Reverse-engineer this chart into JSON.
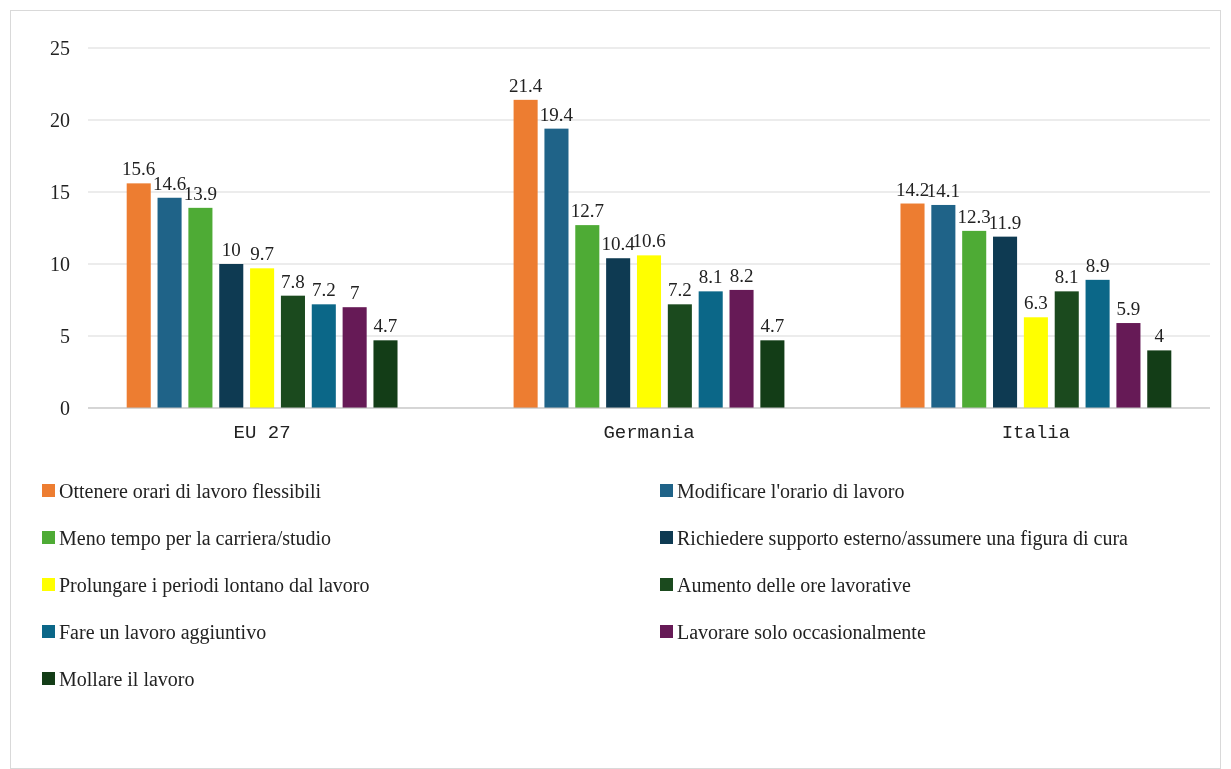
{
  "chart_data": {
    "type": "bar",
    "categories": [
      "EU 27",
      "Germania",
      "Italia"
    ],
    "series": [
      {
        "name": "Ottenere orari di lavoro flessibili",
        "color": "#ed7d31",
        "values": [
          15.6,
          21.4,
          14.2
        ]
      },
      {
        "name": "Modificare l'orario di lavoro",
        "color": "#1f6388",
        "values": [
          14.6,
          19.4,
          14.1
        ]
      },
      {
        "name": "Meno tempo per la carriera/studio",
        "color": "#4eab35",
        "values": [
          13.9,
          12.7,
          12.3
        ]
      },
      {
        "name": "Richiedere supporto esterno/assumere una figura di cura",
        "color": "#0e3a52",
        "values": [
          10,
          10.4,
          11.9
        ]
      },
      {
        "name": "Prolungare i periodi lontano dal lavoro",
        "color": "#ffff00",
        "values": [
          9.7,
          10.6,
          6.3
        ]
      },
      {
        "name": "Aumento delle ore lavorative",
        "color": "#1b4a1e",
        "values": [
          7.8,
          7.2,
          8.1
        ]
      },
      {
        "name": "Fare un lavoro aggiuntivo",
        "color": "#0b6788",
        "values": [
          7.2,
          8.1,
          8.9
        ]
      },
      {
        "name": "Lavorare solo occasionalmente",
        "color": "#661a56",
        "values": [
          7,
          8.2,
          5.9
        ]
      },
      {
        "name": "Mollare il lavoro",
        "color": "#133d17",
        "values": [
          4.7,
          4.7,
          4
        ]
      }
    ],
    "ylim": [
      0,
      25
    ],
    "yticks": [
      0,
      5,
      10,
      15,
      20,
      25
    ],
    "grid": "y",
    "legend": "bottom",
    "data_labels": true
  }
}
